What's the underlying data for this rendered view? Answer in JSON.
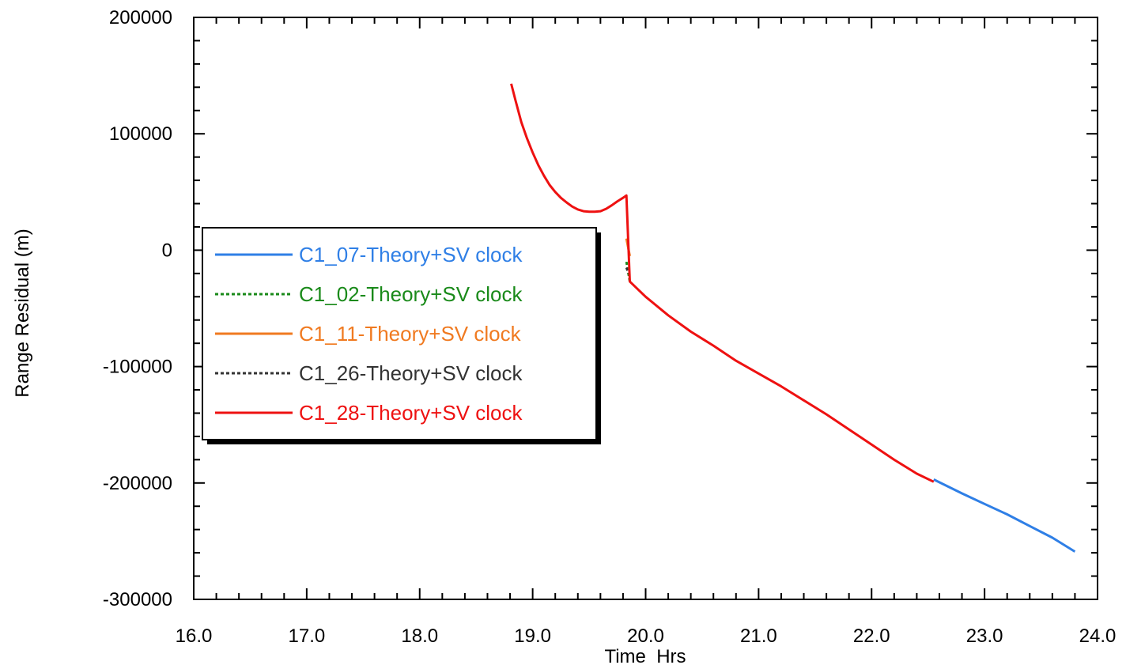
{
  "chart_data": {
    "type": "line",
    "title": "",
    "xlabel": "Time_Hrs",
    "ylabel": "Range Residual (m)",
    "xlim": [
      16.0,
      24.0
    ],
    "ylim": [
      -300000,
      200000
    ],
    "x_ticks": [
      16.0,
      17.0,
      18.0,
      19.0,
      20.0,
      21.0,
      22.0,
      23.0,
      24.0
    ],
    "x_tick_labels": [
      "16.0",
      "17.0",
      "18.0",
      "19.0",
      "20.0",
      "21.0",
      "22.0",
      "23.0",
      "24.0"
    ],
    "y_ticks": [
      200000,
      100000,
      0,
      -100000,
      -200000,
      -300000
    ],
    "y_tick_labels": [
      "200000",
      "100000",
      "0",
      "-100000",
      "-200000",
      "-300000"
    ],
    "grid": false,
    "legend_position": "left",
    "series": [
      {
        "name": "C1_07-Theory+SV clock",
        "color": "#2f7fe6",
        "dash": "solid",
        "x": [
          22.55,
          22.8,
          23.0,
          23.2,
          23.4,
          23.6,
          23.8
        ],
        "y": [
          -197000,
          -209000,
          -218000,
          -227000,
          -237000,
          -247000,
          -259000
        ]
      },
      {
        "name": "C1_02-Theory+SV clock",
        "color": "#1a8a1a",
        "dash": "dotted",
        "x": [
          19.83,
          19.86
        ],
        "y": [
          -10000,
          -27000
        ]
      },
      {
        "name": "C1_11-Theory+SV clock",
        "color": "#f07a20",
        "dash": "solid",
        "x": [
          19.83,
          19.86
        ],
        "y": [
          10000,
          -5000
        ]
      },
      {
        "name": "C1_26-Theory+SV clock",
        "color": "#333333",
        "dash": "dotted",
        "x": [
          19.83,
          19.85
        ],
        "y": [
          -15000,
          -20000
        ]
      },
      {
        "name": "C1_28-Theory+SV clock",
        "color": "#ee1111",
        "dash": "solid",
        "x": [
          18.81,
          18.85,
          18.9,
          18.95,
          19.0,
          19.05,
          19.1,
          19.15,
          19.2,
          19.25,
          19.3,
          19.35,
          19.4,
          19.45,
          19.5,
          19.55,
          19.6,
          19.65,
          19.7,
          19.75,
          19.8,
          19.83,
          19.86,
          20.0,
          20.2,
          20.4,
          20.6,
          20.8,
          21.0,
          21.2,
          21.4,
          21.6,
          21.8,
          22.0,
          22.2,
          22.4,
          22.55
        ],
        "y": [
          143000,
          128000,
          110000,
          96000,
          84000,
          73000,
          64000,
          56000,
          50000,
          45000,
          41000,
          37500,
          35000,
          33500,
          33000,
          33000,
          33500,
          35500,
          38500,
          42000,
          45000,
          47000,
          -27000,
          -40000,
          -56000,
          -70000,
          -82000,
          -95000,
          -106000,
          -117000,
          -129000,
          -141000,
          -154000,
          -167000,
          -180000,
          -192000,
          -199000
        ]
      }
    ]
  }
}
